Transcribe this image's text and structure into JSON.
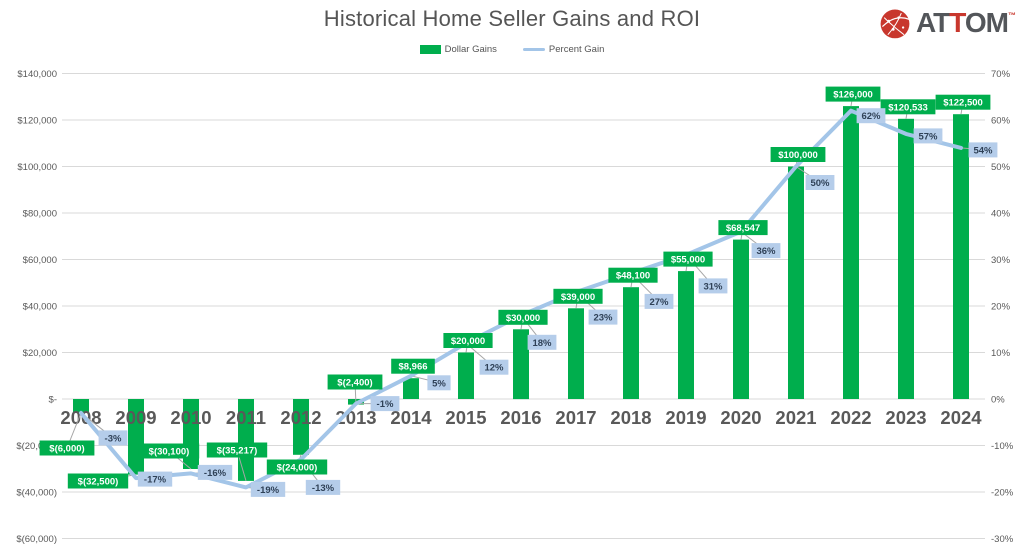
{
  "header": {
    "title": "Historical Home Seller Gains and ROI",
    "logo": {
      "prefix": "AT",
      "accent": "T",
      "suffix": "OM",
      "tm": "™"
    }
  },
  "legend": {
    "dollar_label": "Dollar Gains",
    "percent_label": "Percent Gain"
  },
  "colors": {
    "bar_green": "#00AE4D",
    "line_blue": "#A3C5E8",
    "pct_label_bg": "#B5CDEA",
    "pct_label_text": "#2F4157",
    "dollar_label_text": "#FFFFFF",
    "axis_text": "#595959",
    "year_text": "#595959",
    "title_text": "#555555",
    "gridline": "#D9D9D9",
    "leader": "#A6A6A6",
    "logo_red": "#C8372D",
    "logo_gray": "#53565A"
  },
  "chart_data": {
    "type": "combo",
    "title": "Historical Home Seller Gains and ROI",
    "categories": [
      "2008",
      "2009",
      "2010",
      "2011",
      "2012",
      "2013",
      "2014",
      "2015",
      "2016",
      "2017",
      "2018",
      "2019",
      "2020",
      "2021",
      "2022",
      "2023",
      "2024"
    ],
    "series": [
      {
        "name": "Dollar Gains",
        "type": "bar",
        "color": "#00AE4D",
        "values": [
          -6000,
          -32500,
          -30100,
          -35217,
          -24000,
          -2400,
          8966,
          20000,
          30000,
          39000,
          48100,
          55000,
          68547,
          100000,
          126000,
          120533,
          122500
        ],
        "labels": [
          "$(6,000)",
          "$(32,500)",
          "$(30,100)",
          "$(35,217)",
          "$(24,000)",
          "$(2,400)",
          "$8,966",
          "$20,000",
          "$30,000",
          "$39,000",
          "$48,100",
          "$55,000",
          "$68,547",
          "$100,000",
          "$126,000",
          "$120,533",
          "$122,500"
        ]
      },
      {
        "name": "Percent Gain",
        "type": "line",
        "color": "#A3C5E8",
        "values": [
          -3,
          -17,
          -16,
          -19,
          -13,
          -1,
          5,
          12,
          18,
          23,
          27,
          31,
          36,
          50,
          62,
          57,
          54
        ],
        "labels": [
          "-3%",
          "-17%",
          "-16%",
          "-19%",
          "-13%",
          "-1%",
          "5%",
          "12%",
          "18%",
          "23%",
          "27%",
          "31%",
          "36%",
          "50%",
          "62%",
          "57%",
          "54%"
        ]
      }
    ],
    "left_axis": {
      "ticks": [
        "$140,000",
        "$120,000",
        "$100,000",
        "$80,000",
        "$60,000",
        "$40,000",
        "$20,000",
        "$-",
        "$(20,000)",
        "$(40,000)",
        "$(60,000)"
      ],
      "min": -60000,
      "max": 140000,
      "step": 20000
    },
    "right_axis": {
      "ticks": [
        "70%",
        "60%",
        "50%",
        "40%",
        "30%",
        "20%",
        "10%",
        "0%",
        "-10%",
        "-20%",
        "-30%"
      ],
      "min": -30,
      "max": 70,
      "step": 10
    },
    "grid": true,
    "legend_position": "top"
  }
}
